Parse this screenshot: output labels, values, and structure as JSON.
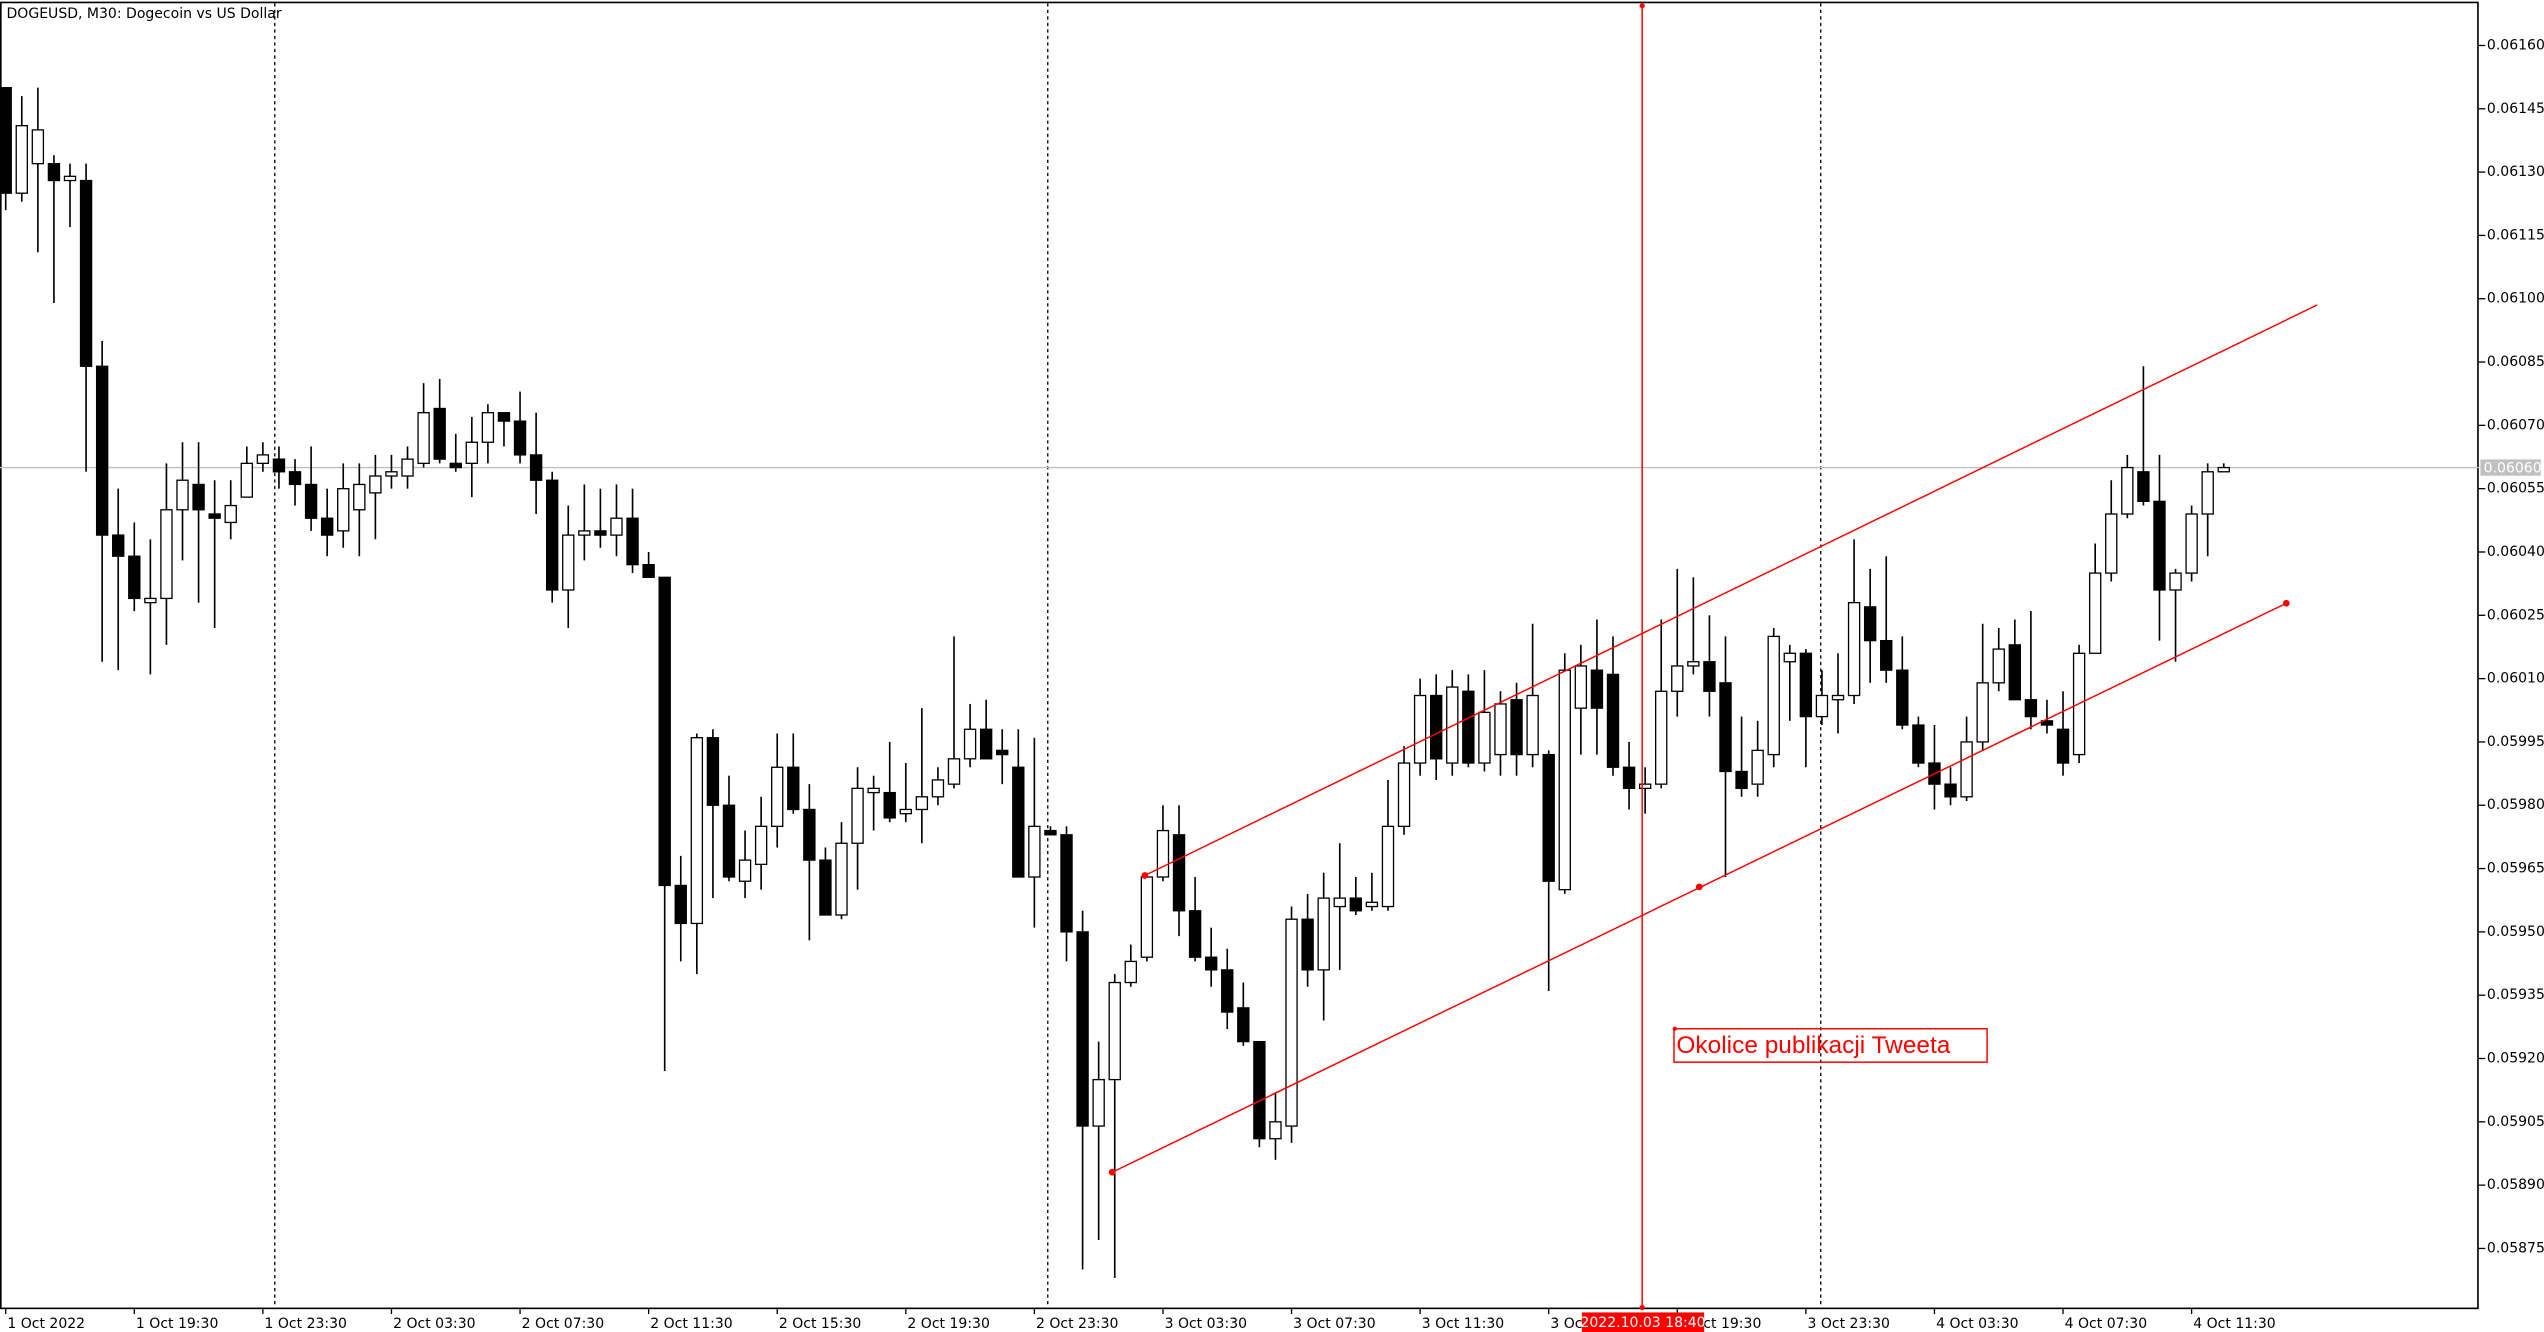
{
  "chart_data": {
    "type": "candlestick",
    "title": "DOGEUSD, M30:  Dogecoin vs US Dollar",
    "categories": [
      "1 Oct 2022",
      null,
      null,
      null,
      null,
      null,
      null,
      null,
      "1 Oct 19:30",
      null,
      null,
      null,
      null,
      null,
      null,
      null,
      "1 Oct 23:30",
      null,
      null,
      null,
      null,
      null,
      null,
      null,
      "2 Oct 03:30",
      null,
      null,
      null,
      null,
      null,
      null,
      null,
      "2 Oct 07:30",
      null,
      null,
      null,
      null,
      null,
      null,
      null,
      "2 Oct 11:30",
      null,
      null,
      null,
      null,
      null,
      null,
      null,
      "2 Oct 15:30",
      null,
      null,
      null,
      null,
      null,
      null,
      null,
      "2 Oct 19:30",
      null,
      null,
      null,
      null,
      null,
      null,
      null,
      "2 Oct 23:30",
      null,
      null,
      null,
      null,
      null,
      null,
      null,
      "3 Oct 03:30",
      null,
      null,
      null,
      null,
      null,
      null,
      null,
      "3 Oct 07:30",
      null,
      null,
      null,
      null,
      null,
      null,
      null,
      "3 Oct 11:30",
      null,
      null,
      null,
      null,
      null,
      null,
      null,
      "3 Oct 15:30",
      null,
      null,
      null,
      null,
      null,
      null,
      null,
      "3 Oct 19:30",
      null,
      null,
      null,
      null,
      null,
      null,
      null,
      "3 Oct 23:30",
      null,
      null,
      null,
      null,
      null,
      null,
      null,
      "4 Oct 03:30",
      null,
      null,
      null,
      null,
      null,
      null,
      null,
      "4 Oct 07:30",
      null,
      null,
      null,
      null,
      null,
      null,
      null,
      "4 Oct 11:30",
      null,
      null
    ],
    "open": [
      0.0615,
      0.06125,
      0.06132,
      0.06132,
      0.06128,
      0.06128,
      0.06084,
      0.06044,
      0.06039,
      0.06028,
      0.06029,
      0.0605,
      0.06056,
      0.06049,
      0.06047,
      0.06053,
      0.06061,
      0.06062,
      0.06059,
      0.06056,
      0.06048,
      0.06045,
      0.0605,
      0.06054,
      0.06058,
      0.06058,
      0.06061,
      0.06074,
      0.06061,
      0.06061,
      0.06066,
      0.06073,
      0.06071,
      0.06063,
      0.06057,
      0.06031,
      0.06044,
      0.06045,
      0.06044,
      0.06048,
      0.06037,
      0.06034,
      0.05961,
      0.05952,
      0.05996,
      0.0598,
      0.05962,
      0.05966,
      0.05975,
      0.05989,
      0.05979,
      0.05967,
      0.05954,
      0.05971,
      0.05983,
      0.05983,
      0.05978,
      0.05979,
      0.05982,
      0.05985,
      0.05991,
      0.05998,
      0.05993,
      0.05989,
      0.05963,
      0.05974,
      0.05973,
      0.0595,
      0.05904,
      0.05915,
      0.05938,
      0.05944,
      0.05963,
      0.05973,
      0.05955,
      0.05944,
      0.05941,
      0.05932,
      0.05924,
      0.05901,
      0.05904,
      0.05953,
      0.05941,
      0.05956,
      0.05958,
      0.05956,
      0.05956,
      0.05975,
      0.0599,
      0.06006,
      0.0599,
      0.06007,
      0.0599,
      0.05992,
      0.06005,
      0.05992,
      0.05992,
      0.0596,
      0.06003,
      0.06012,
      0.06011,
      0.05989,
      0.05984,
      0.05985,
      0.06007,
      0.06013,
      0.06014,
      0.06009,
      0.05988,
      0.05985,
      0.05992,
      0.06014,
      0.06016,
      0.06001,
      0.06005,
      0.06006,
      0.06027,
      0.06019,
      0.06012,
      0.05999,
      0.0599,
      0.05985,
      0.05982,
      0.05995,
      0.06009,
      0.06018,
      0.06005,
      0.06,
      0.05998,
      0.05992,
      0.06016,
      0.06035,
      0.06049,
      0.06059,
      0.06052,
      0.06031,
      0.06035,
      0.06049,
      0.06059
    ],
    "high": [
      0.0615,
      0.06148,
      0.0615,
      0.06134,
      0.06132,
      0.06132,
      0.0609,
      0.06055,
      0.06047,
      0.06043,
      0.06061,
      0.06066,
      0.06066,
      0.06057,
      0.06057,
      0.06065,
      0.06066,
      0.06065,
      0.06062,
      0.06065,
      0.06055,
      0.06061,
      0.06061,
      0.06063,
      0.06063,
      0.06065,
      0.0608,
      0.06081,
      0.06068,
      0.06072,
      0.06075,
      0.06073,
      0.06078,
      0.06073,
      0.06059,
      0.06051,
      0.06056,
      0.06055,
      0.06056,
      0.06055,
      0.0604,
      0.06034,
      0.05968,
      0.05997,
      0.05998,
      0.05987,
      0.05974,
      0.05982,
      0.05997,
      0.05997,
      0.05985,
      0.0597,
      0.05976,
      0.05989,
      0.05987,
      0.05995,
      0.0599,
      0.06003,
      0.05989,
      0.0602,
      0.06004,
      0.06005,
      0.05998,
      0.05998,
      0.05996,
      0.05975,
      0.05975,
      0.05955,
      0.05924,
      0.0594,
      0.05947,
      0.05964,
      0.0598,
      0.0598,
      0.05963,
      0.05951,
      0.05946,
      0.05938,
      0.05924,
      0.05912,
      0.05956,
      0.05959,
      0.05964,
      0.05971,
      0.05963,
      0.05964,
      0.05986,
      0.05994,
      0.0601,
      0.06011,
      0.06012,
      0.06011,
      0.06012,
      0.06007,
      0.06009,
      0.06023,
      0.05993,
      0.06016,
      0.06018,
      0.06024,
      0.0602,
      0.05995,
      0.05989,
      0.06024,
      0.06036,
      0.06034,
      0.06025,
      0.0602,
      0.06001,
      0.06,
      0.06022,
      0.06018,
      0.06017,
      0.06012,
      0.06016,
      0.06043,
      0.06036,
      0.06039,
      0.0602,
      0.06001,
      0.05999,
      0.05989,
      0.06001,
      0.06023,
      0.06022,
      0.06024,
      0.06026,
      0.06005,
      0.06007,
      0.06018,
      0.06042,
      0.06057,
      0.06063,
      0.06084,
      0.06063,
      0.06036,
      0.06051,
      0.06061,
      0.06061
    ],
    "low": [
      0.06121,
      0.06123,
      0.06111,
      0.06099,
      0.06117,
      0.06059,
      0.06014,
      0.06012,
      0.06026,
      0.06011,
      0.06018,
      0.06038,
      0.06028,
      0.06022,
      0.06043,
      0.06053,
      0.06059,
      0.06055,
      0.06051,
      0.06045,
      0.06039,
      0.06041,
      0.06039,
      0.06043,
      0.06055,
      0.06055,
      0.0606,
      0.06061,
      0.06059,
      0.06053,
      0.06061,
      0.06065,
      0.06061,
      0.06049,
      0.06028,
      0.06022,
      0.06038,
      0.06041,
      0.06039,
      0.06035,
      0.06034,
      0.05917,
      0.05943,
      0.0594,
      0.05958,
      0.05962,
      0.05958,
      0.0596,
      0.0597,
      0.05978,
      0.05948,
      0.05954,
      0.05953,
      0.0596,
      0.05974,
      0.05976,
      0.05976,
      0.05971,
      0.0598,
      0.05984,
      0.05989,
      0.05991,
      0.05985,
      0.05963,
      0.05951,
      0.05973,
      0.05943,
      0.0587,
      0.05877,
      0.05868,
      0.05937,
      0.05943,
      0.05962,
      0.05949,
      0.05943,
      0.05937,
      0.05927,
      0.05923,
      0.05899,
      0.05896,
      0.059,
      0.05937,
      0.05929,
      0.05941,
      0.05954,
      0.05955,
      0.05955,
      0.05973,
      0.05987,
      0.05986,
      0.05987,
      0.05989,
      0.05988,
      0.05987,
      0.05987,
      0.05989,
      0.05936,
      0.05959,
      0.05992,
      0.05992,
      0.05987,
      0.05979,
      0.05978,
      0.05984,
      0.06001,
      0.06011,
      0.06001,
      0.05963,
      0.05982,
      0.05982,
      0.05989,
      0.06,
      0.05989,
      0.05999,
      0.05997,
      0.06004,
      0.06009,
      0.06009,
      0.05998,
      0.05989,
      0.05979,
      0.0598,
      0.05981,
      0.05993,
      0.06007,
      0.06005,
      0.05998,
      0.05997,
      0.05987,
      0.0599,
      0.06016,
      0.06033,
      0.06048,
      0.06051,
      0.06019,
      0.06014,
      0.06033,
      0.06039,
      0.06059
    ],
    "close": [
      0.06125,
      0.06141,
      0.0614,
      0.06128,
      0.06129,
      0.06084,
      0.06044,
      0.06039,
      0.06029,
      0.06029,
      0.0605,
      0.06057,
      0.0605,
      0.06048,
      0.06051,
      0.06061,
      0.06063,
      0.06059,
      0.06056,
      0.06048,
      0.06044,
      0.06055,
      0.06056,
      0.06058,
      0.06059,
      0.06062,
      0.06073,
      0.06062,
      0.0606,
      0.06066,
      0.06073,
      0.06071,
      0.06063,
      0.06057,
      0.06031,
      0.06044,
      0.06045,
      0.06044,
      0.06048,
      0.06037,
      0.06034,
      0.05961,
      0.05952,
      0.05996,
      0.0598,
      0.05963,
      0.05967,
      0.05975,
      0.05989,
      0.05979,
      0.05967,
      0.05954,
      0.05971,
      0.05984,
      0.05984,
      0.05977,
      0.05979,
      0.05982,
      0.05986,
      0.05991,
      0.05998,
      0.05991,
      0.05992,
      0.05963,
      0.05975,
      0.05973,
      0.0595,
      0.05904,
      0.05915,
      0.05938,
      0.05943,
      0.05963,
      0.05974,
      0.05955,
      0.05944,
      0.05941,
      0.05931,
      0.05924,
      0.05901,
      0.05905,
      0.05953,
      0.05941,
      0.05958,
      0.05958,
      0.05955,
      0.05957,
      0.05975,
      0.0599,
      0.06006,
      0.05991,
      0.06008,
      0.0599,
      0.06002,
      0.06004,
      0.05992,
      0.06006,
      0.05962,
      0.06012,
      0.06013,
      0.06003,
      0.05989,
      0.05984,
      0.05985,
      0.06007,
      0.06013,
      0.06014,
      0.06007,
      0.05988,
      0.05984,
      0.05993,
      0.0602,
      0.06016,
      0.06001,
      0.06006,
      0.06006,
      0.06028,
      0.06019,
      0.06012,
      0.05999,
      0.0599,
      0.05985,
      0.05982,
      0.05995,
      0.06009,
      0.06017,
      0.06005,
      0.06001,
      0.05999,
      0.0599,
      0.06016,
      0.06035,
      0.06049,
      0.0606,
      0.06052,
      0.06031,
      0.06035,
      0.06049,
      0.06059,
      0.0606
    ],
    "up_color": "#ffffff",
    "down_color": "#000000",
    "ylim": [
      0.05861,
      0.0617
    ],
    "yticks": [
      {
        "value": 0.0616,
        "label": "0.06160"
      },
      0.06145,
      {
        "value": 0.0613,
        "label": "0.06130"
      },
      0.06115,
      {
        "value": 0.061,
        "label": "0.06100"
      },
      0.06085,
      {
        "value": 0.0607,
        "label": "0.06070"
      },
      0.06055,
      {
        "value": 0.0604,
        "label": "0.06040"
      },
      0.06025,
      {
        "value": 0.0601,
        "label": "0.06010"
      },
      0.05995,
      {
        "value": 0.0598,
        "label": "0.05980"
      },
      0.05965,
      {
        "value": 0.0595,
        "label": "0.05950"
      },
      0.05935,
      {
        "value": 0.0592,
        "label": "0.05920"
      },
      0.05905,
      {
        "value": 0.0589,
        "label": "0.05890"
      },
      0.05875
    ],
    "current_price": {
      "value": 0.0606,
      "label": "0.06060"
    },
    "annotation": "Okolice publikacji Tweeta",
    "crosshair_label": "2022.10.03 18:40"
  }
}
